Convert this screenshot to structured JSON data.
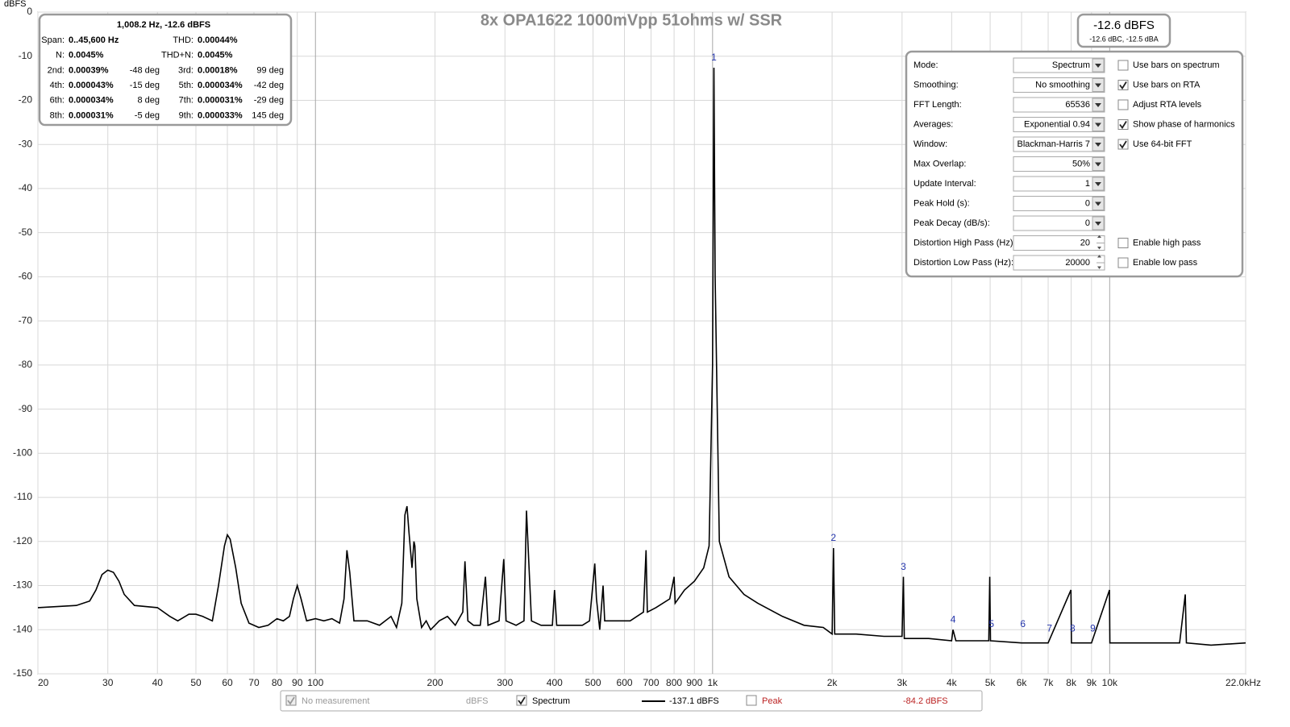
{
  "chart_data": {
    "type": "line",
    "title": "8x OPA1622 1000mVpp 51ohms w/ SSR",
    "y_label": "dBFS",
    "xscale": "log",
    "grid": true,
    "xlim": [
      20,
      22000
    ],
    "ylim": [
      -150,
      0
    ],
    "xticks": [
      20,
      30,
      40,
      50,
      60,
      70,
      80,
      90,
      100,
      200,
      300,
      400,
      500,
      600,
      700,
      800,
      900,
      {
        "value": 1000,
        "label": "1k"
      },
      {
        "value": 2000,
        "label": "2k"
      },
      {
        "value": 3000,
        "label": "3k"
      },
      {
        "value": 4000,
        "label": "4k"
      },
      {
        "value": 5000,
        "label": "5k"
      },
      {
        "value": 6000,
        "label": "6k"
      },
      {
        "value": 7000,
        "label": "7k"
      },
      {
        "value": 8000,
        "label": "8k"
      },
      {
        "value": 9000,
        "label": "9k"
      },
      {
        "value": 10000,
        "label": "10k"
      },
      {
        "value": 22000,
        "label": "22.0kHz"
      }
    ],
    "yticks": [
      0,
      -10,
      -20,
      -30,
      -40,
      -50,
      -60,
      -70,
      -80,
      -90,
      -100,
      -110,
      -120,
      -130,
      -140,
      -150
    ],
    "x": [
      20,
      25,
      27,
      28,
      29,
      30,
      31,
      32,
      33,
      35,
      40,
      43,
      45,
      48,
      50,
      52,
      55,
      57,
      59,
      60,
      61,
      63,
      65,
      68,
      72,
      76,
      80,
      83,
      86,
      88,
      90,
      92,
      95,
      100,
      105,
      110,
      115,
      118,
      120,
      122,
      125,
      135,
      145,
      155,
      160,
      165,
      168,
      170,
      172,
      175,
      177,
      178,
      180,
      185,
      190,
      195,
      200,
      205,
      215,
      225,
      235,
      238,
      242,
      250,
      260,
      268,
      272,
      290,
      298,
      302,
      320,
      335,
      340,
      345,
      350,
      370,
      395,
      400,
      405,
      440,
      470,
      490,
      505,
      510,
      520,
      530,
      535,
      580,
      620,
      670,
      680,
      685,
      720,
      780,
      800,
      805,
      850,
      900,
      950,
      980,
      1000,
      1008,
      1015,
      1040,
      1100,
      1200,
      1300,
      1500,
      1700,
      1900,
      2000,
      2016,
      2030,
      2300,
      2700,
      3000,
      3024,
      3040,
      3500,
      4000,
      4032,
      4100,
      4960,
      4990,
      5010,
      6000,
      7000,
      7990,
      8010,
      9000,
      9990,
      10010,
      13000,
      15000,
      15500,
      15600,
      18000,
      22000
    ],
    "series": [
      {
        "name": "Spectrum",
        "color": "#000000",
        "values": [
          -135,
          -134.5,
          -133.5,
          -131,
          -127.5,
          -126.5,
          -127,
          -129,
          -132,
          -134.5,
          -135,
          -137,
          -138,
          -136.5,
          -136.5,
          -137,
          -138,
          -130,
          -121,
          -118.5,
          -119.5,
          -126,
          -134,
          -138.5,
          -139.5,
          -139,
          -137.5,
          -138,
          -137,
          -133,
          -130,
          -133,
          -138,
          -137.5,
          -138,
          -137.5,
          -138.5,
          -133,
          -122,
          -127,
          -138,
          -138,
          -139,
          -137,
          -139.5,
          -134,
          -114,
          -112,
          -118,
          -126,
          -120,
          -121,
          -133,
          -139.5,
          -138,
          -140,
          -139,
          -138,
          -137,
          -139,
          -136,
          -124.5,
          -138,
          -139,
          -139,
          -128,
          -139,
          -138,
          -124,
          -138,
          -139,
          -138,
          -113,
          -126,
          -138,
          -139,
          -139,
          -131,
          -139,
          -139,
          -139,
          -138,
          -125,
          -133,
          -140,
          -130,
          -138,
          -138,
          -138,
          -136,
          -122,
          -136,
          -135,
          -133,
          -128,
          -134,
          -131,
          -129,
          -126,
          -121,
          -80,
          -12.6,
          -60,
          -120,
          -128,
          -132,
          -134,
          -137,
          -139,
          -139.5,
          -141,
          -121.5,
          -141,
          -141,
          -141.5,
          -141.5,
          -128,
          -142,
          -142,
          -142.5,
          -140,
          -142.5,
          -142.5,
          -128,
          -142.5,
          -143,
          -143,
          -131,
          -143,
          -143,
          -131,
          -143,
          -143,
          -143,
          -132,
          -143,
          -143.5,
          -143
        ]
      }
    ],
    "harmonic_markers": [
      {
        "label": "1",
        "x": 1008,
        "y": -12.6
      },
      {
        "label": "2",
        "x": 2016,
        "y": -121.5
      },
      {
        "label": "3",
        "x": 3024,
        "y": -128
      },
      {
        "label": "4",
        "x": 4032,
        "y": -140
      },
      {
        "label": "5",
        "x": 5040,
        "y": -141
      },
      {
        "label": "6",
        "x": 6048,
        "y": -141
      },
      {
        "label": "7",
        "x": 7056,
        "y": -142
      },
      {
        "label": "8",
        "x": 8064,
        "y": -142
      },
      {
        "label": "9",
        "x": 9072,
        "y": -142
      }
    ]
  },
  "distortion_panel": {
    "title": "1,008.2 Hz, -12.6 dBFS",
    "rows": [
      {
        "left": {
          "label": "Span:",
          "value": "0..45,600 Hz"
        },
        "right": {
          "label": "THD:",
          "value": "0.00044%"
        }
      },
      {
        "left": {
          "label": "N:",
          "value": "0.0045%"
        },
        "right": {
          "label": "THD+N:",
          "value": "0.0045%"
        }
      },
      {
        "left": {
          "label": "2nd:",
          "value": "0.00039%",
          "phase": "-48 deg"
        },
        "right": {
          "label": "3rd:",
          "value": "0.00018%",
          "phase": "99 deg"
        }
      },
      {
        "left": {
          "label": "4th:",
          "value": "0.000043%",
          "phase": "-15 deg"
        },
        "right": {
          "label": "5th:",
          "value": "0.000034%",
          "phase": "-42 deg"
        }
      },
      {
        "left": {
          "label": "6th:",
          "value": "0.000034%",
          "phase": "8 deg"
        },
        "right": {
          "label": "7th:",
          "value": "0.000031%",
          "phase": "-29 deg"
        }
      },
      {
        "left": {
          "label": "8th:",
          "value": "0.000031%",
          "phase": "-5 deg"
        },
        "right": {
          "label": "9th:",
          "value": "0.000033%",
          "phase": "145 deg"
        }
      }
    ]
  },
  "level_meter": {
    "level": "-12.6 dBFS",
    "weighted": "-12.6 dBC, -12.5 dBA"
  },
  "controls": {
    "rows": [
      {
        "label": "Mode:",
        "value": "Spectrum"
      },
      {
        "label": "Smoothing:",
        "value": "No  smoothing"
      },
      {
        "label": "FFT Length:",
        "value": "65536"
      },
      {
        "label": "Averages:",
        "value": "Exponential 0.94"
      },
      {
        "label": "Window:",
        "value": "Blackman-Harris 7"
      },
      {
        "label": "Max Overlap:",
        "value": "50%"
      },
      {
        "label": "Update Interval:",
        "value": "1"
      },
      {
        "label": "Peak Hold (s):",
        "value": "0"
      },
      {
        "label": "Peak Decay (dB/s):",
        "value": "0"
      },
      {
        "label": "Distortion High Pass (Hz):",
        "value": "20"
      },
      {
        "label": "Distortion Low Pass (Hz):",
        "value": "20000"
      }
    ],
    "checkboxes": [
      {
        "label": "Use bars on spectrum",
        "checked": false
      },
      {
        "label": "Use bars on RTA",
        "checked": true
      },
      {
        "label": "Adjust RTA levels",
        "checked": false
      },
      {
        "label": "Show phase of harmonics",
        "checked": true
      },
      {
        "label": "Use 64-bit FFT",
        "checked": true
      },
      {
        "label": "Enable high pass",
        "checked": false
      },
      {
        "label": "Enable low pass",
        "checked": false
      }
    ]
  },
  "legend_bar": {
    "no_measurement": {
      "label": "No measurement",
      "checked": true,
      "unit": "dBFS"
    },
    "spectrum": {
      "label": "Spectrum",
      "checked": true,
      "value": "-137.1 dBFS"
    },
    "peak": {
      "label": "Peak",
      "checked": false,
      "value": "-84.2 dBFS"
    }
  }
}
